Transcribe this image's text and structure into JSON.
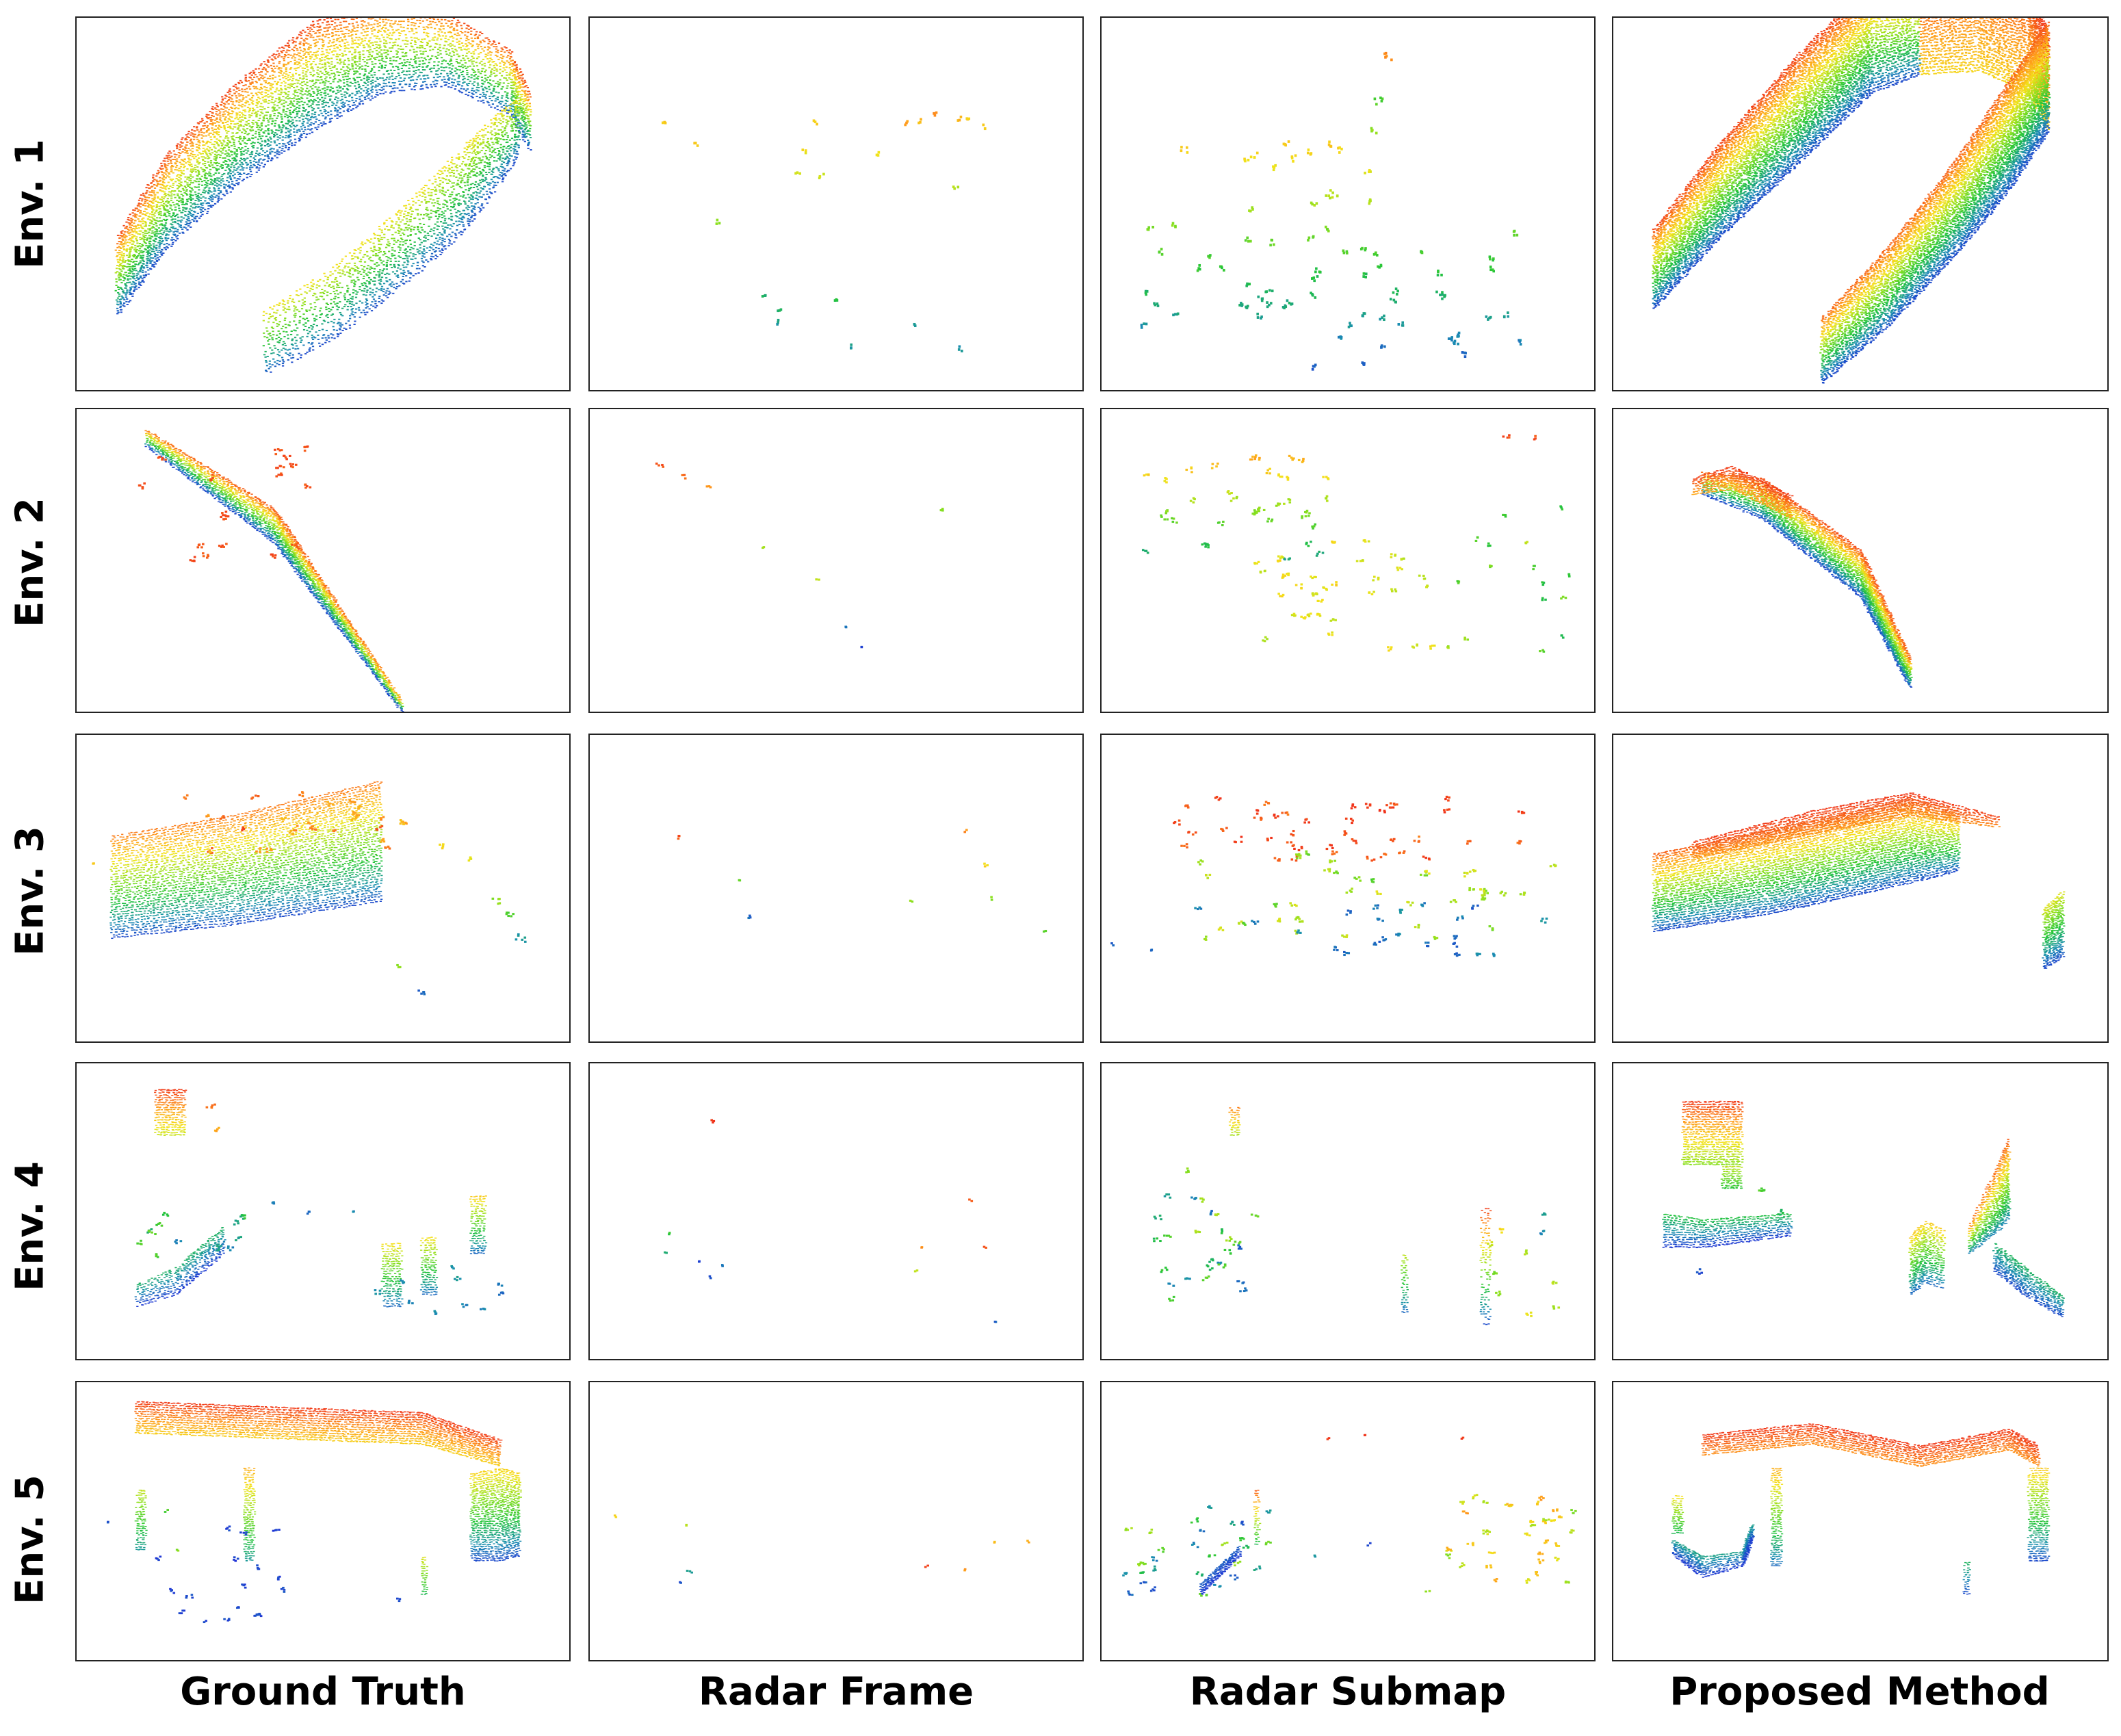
{
  "columns": [
    "Ground Truth",
    "Radar Frame",
    "Radar Submap",
    "Proposed Method"
  ],
  "rows": [
    "Env. 1",
    "Env. 2",
    "Env. 3",
    "Env. 4",
    "Env. 5"
  ],
  "colormap": [
    "#1f2fd8",
    "#1a8fb0",
    "#22c43a",
    "#8be01f",
    "#f3e31a",
    "#ff9a1a",
    "#f0321a"
  ]
}
